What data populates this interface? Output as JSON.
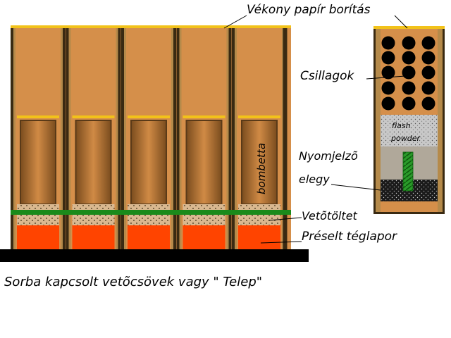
{
  "labels": {
    "paper_cover": "Vékony papír borítás",
    "stars": "Csillagok",
    "tracer_line1": "Nyomjelzõ",
    "tracer_line2": "elegy",
    "lift_charge": "Vetõtöltet",
    "clay": "Préselt téglapor",
    "shell_label": "bombetta",
    "flash_line1": "flash",
    "flash_line2": "powder"
  },
  "caption": "Sorba kapcsolt vetõcsövek vagy \" Telep\"",
  "colors": {
    "wall": "#3a2a12",
    "wall_light": "#b58a4a",
    "tube_fill": "#d58f4a",
    "paper": "#f2c21a",
    "shell_dark": "#5a3a18",
    "lift_charge": "#d9b890",
    "clay": "#ff4400",
    "green_band": "#1a8a1a",
    "base": "#000000",
    "star": "#000000",
    "flash": "#c8c8c8",
    "grey_fill": "#b0a89a",
    "fuse": "#2a9a2a"
  },
  "tube_count": 5
}
